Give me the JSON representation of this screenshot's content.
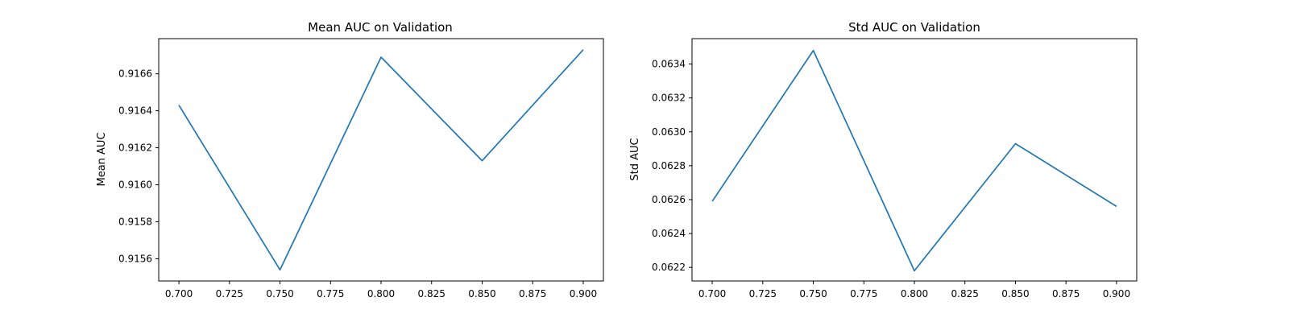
{
  "chart_data": [
    {
      "type": "line",
      "title": "Mean AUC on Validation",
      "xlabel": "",
      "ylabel": "Mean AUC",
      "x": [
        0.7,
        0.75,
        0.8,
        0.85,
        0.9
      ],
      "series": [
        {
          "name": "Mean AUC",
          "values": [
            0.91643,
            0.91554,
            0.91669,
            0.91613,
            0.91673
          ],
          "color": "#1f77b4"
        }
      ],
      "xlim": [
        0.69,
        0.91
      ],
      "ylim": [
        0.91548,
        0.91679
      ],
      "xticks": [
        0.7,
        0.725,
        0.75,
        0.775,
        0.8,
        0.825,
        0.85,
        0.875,
        0.9
      ],
      "xtick_labels": [
        "0.700",
        "0.725",
        "0.750",
        "0.775",
        "0.800",
        "0.825",
        "0.850",
        "0.875",
        "0.900"
      ],
      "yticks": [
        0.9156,
        0.9158,
        0.916,
        0.9162,
        0.9164,
        0.9166
      ],
      "ytick_labels": [
        "0.9156",
        "0.9158",
        "0.9160",
        "0.9162",
        "0.9164",
        "0.9166"
      ],
      "grid": false
    },
    {
      "type": "line",
      "title": "Std AUC on Validation",
      "xlabel": "",
      "ylabel": "Std AUC",
      "x": [
        0.7,
        0.75,
        0.8,
        0.85,
        0.9
      ],
      "series": [
        {
          "name": "Std AUC",
          "values": [
            0.06259,
            0.06348,
            0.06218,
            0.06293,
            0.06256
          ],
          "color": "#1f77b4"
        }
      ],
      "xlim": [
        0.69,
        0.91
      ],
      "ylim": [
        0.06212,
        0.06355
      ],
      "xticks": [
        0.7,
        0.725,
        0.75,
        0.775,
        0.8,
        0.825,
        0.85,
        0.875,
        0.9
      ],
      "xtick_labels": [
        "0.700",
        "0.725",
        "0.750",
        "0.775",
        "0.800",
        "0.825",
        "0.850",
        "0.875",
        "0.900"
      ],
      "yticks": [
        0.0622,
        0.0624,
        0.0626,
        0.0628,
        0.063,
        0.0632,
        0.0634
      ],
      "ytick_labels": [
        "0.0622",
        "0.0624",
        "0.0626",
        "0.0628",
        "0.0630",
        "0.0632",
        "0.0634"
      ],
      "grid": false
    }
  ]
}
